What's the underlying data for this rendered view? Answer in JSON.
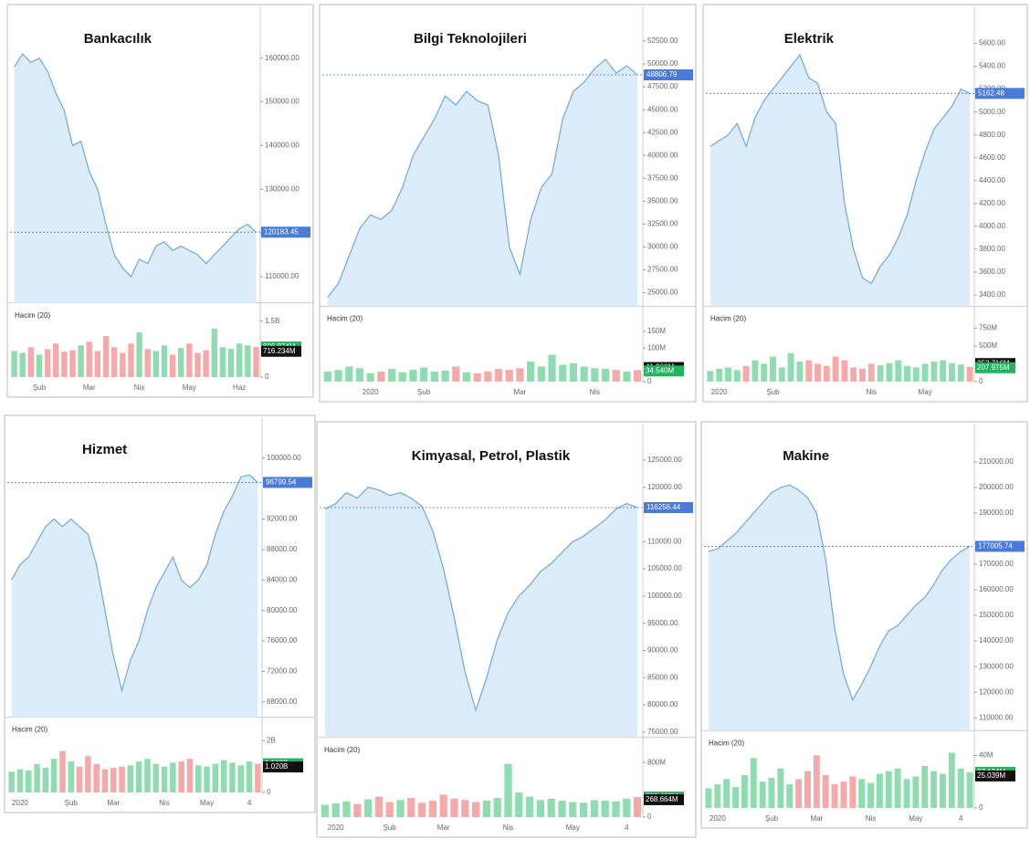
{
  "chart_data": [
    {
      "type": "area",
      "title": "Bankacılık",
      "color": "#6fa8dc",
      "fill": "#dcedf9",
      "categories": [
        null,
        null,
        null,
        "Şub",
        null,
        null,
        null,
        null,
        null,
        "Mar",
        null,
        null,
        null,
        null,
        null,
        "Nis",
        null,
        null,
        null,
        null,
        null,
        "May",
        null,
        null,
        null,
        null,
        null,
        "Haz",
        null,
        null
      ],
      "values": [
        158000,
        161000,
        159000,
        160000,
        157000,
        152000,
        148000,
        140000,
        141000,
        134000,
        130000,
        122000,
        115000,
        112000,
        110000,
        114000,
        113000,
        117000,
        118000,
        116000,
        117000,
        116000,
        115000,
        113000,
        115000,
        117000,
        119000,
        121000,
        122000,
        120183.45
      ],
      "last_label": "120183.45",
      "ylim": [
        104000,
        166000
      ],
      "yticks": [
        {
          "value": 110000,
          "label": "110000.00"
        },
        {
          "value": 120000,
          "label": "120000.00"
        },
        {
          "value": 130000,
          "label": "130000.00"
        },
        {
          "value": 140000,
          "label": "140000.00"
        },
        {
          "value": 150000,
          "label": "150000.00"
        },
        {
          "value": 160000,
          "label": "160000.00"
        }
      ],
      "volume": {
        "label": "Hacim (20)",
        "ylim": [
          0,
          1500
        ],
        "yticks": [
          0,
          {
            "value": 1500,
            "label": "1.5B"
          }
        ],
        "values": [
          700,
          650,
          800,
          600,
          750,
          900,
          680,
          720,
          850,
          950,
          700,
          1100,
          800,
          650,
          900,
          1200,
          750,
          700,
          850,
          600,
          780,
          900,
          650,
          720,
          1300,
          800,
          760,
          900,
          850,
          806.874
        ],
        "badges": [
          {
            "value": 806.874,
            "label": "806.874M",
            "color": "#22b35e"
          },
          {
            "value": 716.234,
            "label": "716.234M",
            "color": "#111111"
          }
        ]
      }
    },
    {
      "type": "area",
      "title": "Bilgi Teknolojileri",
      "color": "#6fa8dc",
      "fill": "#dcedf9",
      "categories": [
        null,
        null,
        null,
        null,
        "2020",
        null,
        null,
        null,
        null,
        "Şub",
        null,
        null,
        null,
        null,
        null,
        null,
        null,
        null,
        "Mar",
        null,
        null,
        null,
        null,
        null,
        null,
        "Nis",
        null,
        null,
        null,
        null
      ],
      "values": [
        24500,
        26000,
        29000,
        32000,
        33500,
        33000,
        34000,
        36500,
        40000,
        42000,
        44000,
        46500,
        45500,
        47000,
        46000,
        45500,
        40000,
        30000,
        27000,
        33000,
        36500,
        38000,
        44000,
        47000,
        48000,
        49500,
        50500,
        49000,
        49800,
        48806.79
      ],
      "last_label": "48806.79",
      "ylim": [
        23500,
        53500
      ],
      "yticks": [
        {
          "value": 25000,
          "label": "25000.00"
        },
        {
          "value": 27500,
          "label": "27500.00"
        },
        {
          "value": 30000,
          "label": "30000.00"
        },
        {
          "value": 32500,
          "label": "32500.00"
        },
        {
          "value": 35000,
          "label": "35000.00"
        },
        {
          "value": 37500,
          "label": "37500.00"
        },
        {
          "value": 40000,
          "label": "40000.00"
        },
        {
          "value": 42500,
          "label": "42500.00"
        },
        {
          "value": 45000,
          "label": "45000.00"
        },
        {
          "value": 47500,
          "label": "47500.00"
        },
        {
          "value": 50000,
          "label": "50000.00"
        },
        {
          "value": 52500,
          "label": "52500.00"
        }
      ],
      "volume": {
        "label": "Hacim (20)",
        "ylim": [
          0,
          170
        ],
        "yticks": [
          0,
          {
            "value": 100,
            "label": "100M"
          },
          {
            "value": 150,
            "label": "150M"
          }
        ],
        "values": [
          30,
          35,
          45,
          40,
          25,
          30,
          38,
          28,
          35,
          42,
          30,
          33,
          45,
          28,
          25,
          30,
          38,
          35,
          40,
          60,
          45,
          80,
          50,
          55,
          45,
          40,
          38,
          35,
          30,
          34.54
        ],
        "badges": [
          {
            "value": 41.96,
            "label": "41.960M",
            "color": "#111111"
          },
          {
            "value": 34.54,
            "label": "34.540M",
            "color": "#22b35e"
          }
        ]
      }
    },
    {
      "type": "area",
      "title": "Elektrik",
      "color": "#6fa8dc",
      "fill": "#dcedf9",
      "categories": [
        null,
        "2020",
        null,
        null,
        null,
        null,
        null,
        "Şub",
        null,
        null,
        null,
        null,
        null,
        null,
        null,
        null,
        null,
        null,
        "Nis",
        null,
        null,
        null,
        null,
        null,
        "May",
        null,
        null,
        null,
        null,
        null
      ],
      "values": [
        4700,
        4750,
        4800,
        4900,
        4700,
        4950,
        5100,
        5200,
        5300,
        5400,
        5500,
        5300,
        5250,
        5000,
        4900,
        4200,
        3800,
        3550,
        3500,
        3650,
        3750,
        3900,
        4100,
        4400,
        4650,
        4850,
        4950,
        5050,
        5200,
        5162.48
      ],
      "last_label": "5162.48",
      "ylim": [
        3300,
        5700
      ],
      "yticks": [
        {
          "value": 3400,
          "label": "3400.00"
        },
        {
          "value": 3600,
          "label": "3600.00"
        },
        {
          "value": 3800,
          "label": "3800.00"
        },
        {
          "value": 4000,
          "label": "4000.00"
        },
        {
          "value": 4200,
          "label": "4200.00"
        },
        {
          "value": 4400,
          "label": "4400.00"
        },
        {
          "value": 4600,
          "label": "4600.00"
        },
        {
          "value": 4800,
          "label": "4800.00"
        },
        {
          "value": 5000,
          "label": "5000.00"
        },
        {
          "value": 5200,
          "label": "5200.00"
        },
        {
          "value": 5400,
          "label": "5400.00"
        },
        {
          "value": 5600,
          "label": "5600.00"
        }
      ],
      "volume": {
        "label": "Hacim (20)",
        "ylim": [
          0,
          800
        ],
        "yticks": [
          0,
          {
            "value": 500,
            "label": "500M"
          },
          {
            "value": 750,
            "label": "750M"
          }
        ],
        "values": [
          150,
          180,
          200,
          160,
          220,
          300,
          250,
          350,
          200,
          400,
          280,
          300,
          250,
          220,
          350,
          300,
          200,
          180,
          250,
          230,
          260,
          300,
          220,
          200,
          250,
          280,
          300,
          260,
          240,
          207.975
        ],
        "badges": [
          {
            "value": 253.716,
            "label": "253.716M",
            "color": "#111111"
          },
          {
            "value": 207.975,
            "label": "207.975M",
            "color": "#22b35e"
          }
        ]
      }
    },
    {
      "type": "area",
      "title": "Hizmet",
      "color": "#6fa8dc",
      "fill": "#dcedf9",
      "categories": [
        null,
        "2020",
        null,
        null,
        null,
        null,
        null,
        "Şub",
        null,
        null,
        null,
        null,
        "Mar",
        null,
        null,
        null,
        null,
        null,
        "Nis",
        null,
        null,
        null,
        null,
        "May",
        null,
        null,
        null,
        null,
        "4",
        null
      ],
      "values": [
        84000,
        86000,
        87000,
        89000,
        91000,
        92000,
        91000,
        92000,
        91000,
        90000,
        86000,
        80000,
        74000,
        69500,
        73500,
        76000,
        80000,
        83000,
        85000,
        87000,
        84000,
        83000,
        84000,
        86000,
        90000,
        93000,
        95000,
        97500,
        97800,
        96799.54
      ],
      "last_label": "96799.54",
      "ylim": [
        66000,
        102000
      ],
      "yticks": [
        {
          "value": 68000,
          "label": "68000.00"
        },
        {
          "value": 72000,
          "label": "72000.00"
        },
        {
          "value": 76000,
          "label": "76000.00"
        },
        {
          "value": 80000,
          "label": "80000.00"
        },
        {
          "value": 84000,
          "label": "84000.00"
        },
        {
          "value": 88000,
          "label": "88000.00"
        },
        {
          "value": 92000,
          "label": "92000.00"
        },
        {
          "value": 100000,
          "label": "100000.00"
        }
      ],
      "volume": {
        "label": "Hacim (20)",
        "ylim": [
          0,
          2200
        ],
        "yticks": [
          0,
          {
            "value": 2000,
            "label": "2B"
          }
        ],
        "values": [
          800,
          900,
          850,
          1100,
          950,
          1300,
          1600,
          1200,
          1000,
          1400,
          1100,
          900,
          950,
          1000,
          1050,
          1200,
          1300,
          1100,
          1000,
          1150,
          1200,
          1300,
          1050,
          1000,
          1100,
          1250,
          1150,
          1050,
          1200,
          1108
        ],
        "badges": [
          {
            "value": 1108,
            "label": "1.108B",
            "color": "#22b35e"
          },
          {
            "value": 1020,
            "label": "1.020B",
            "color": "#111111"
          }
        ]
      }
    },
    {
      "type": "area",
      "title": "Kimyasal, Petrol, Plastik",
      "color": "#6fa8dc",
      "fill": "#dcedf9",
      "categories": [
        null,
        "2020",
        null,
        null,
        null,
        null,
        "Şub",
        null,
        null,
        null,
        null,
        "Mar",
        null,
        null,
        null,
        null,
        null,
        "Nis",
        null,
        null,
        null,
        null,
        null,
        "May",
        null,
        null,
        null,
        null,
        "4",
        null
      ],
      "values": [
        116000,
        117000,
        119000,
        118000,
        120000,
        119500,
        118500,
        119000,
        118000,
        116500,
        112000,
        105000,
        96000,
        86000,
        79000,
        85000,
        92000,
        97000,
        100000,
        102000,
        104500,
        106000,
        108000,
        110000,
        111000,
        112500,
        114000,
        116000,
        117000,
        116256.44
      ],
      "last_label": "116256.44",
      "ylim": [
        74000,
        127000
      ],
      "yticks": [
        {
          "value": 75000,
          "label": "75000.00"
        },
        {
          "value": 80000,
          "label": "80000.00"
        },
        {
          "value": 85000,
          "label": "85000.00"
        },
        {
          "value": 90000,
          "label": "90000.00"
        },
        {
          "value": 95000,
          "label": "95000.00"
        },
        {
          "value": 100000,
          "label": "100000.00"
        },
        {
          "value": 105000,
          "label": "105000.00"
        },
        {
          "value": 110000,
          "label": "110000.00"
        },
        {
          "value": 120000,
          "label": "120000.00"
        },
        {
          "value": 125000,
          "label": "125000.00"
        }
      ],
      "volume": {
        "label": "Hacim (20)",
        "ylim": [
          0,
          900
        ],
        "yticks": [
          0,
          {
            "value": 800,
            "label": "800M"
          }
        ],
        "values": [
          180,
          200,
          230,
          190,
          260,
          300,
          220,
          250,
          280,
          210,
          240,
          330,
          270,
          250,
          220,
          240,
          280,
          780,
          360,
          300,
          250,
          270,
          240,
          220,
          210,
          250,
          240,
          230,
          270,
          293.429
        ],
        "badges": [
          {
            "value": 293.429,
            "label": "293.429M",
            "color": "#22b35e"
          },
          {
            "value": 268.664,
            "label": "268.664M",
            "color": "#111111"
          }
        ]
      }
    },
    {
      "type": "area",
      "title": "Makine",
      "color": "#6fa8dc",
      "fill": "#dcedf9",
      "categories": [
        null,
        "2020",
        null,
        null,
        null,
        null,
        null,
        "Şub",
        null,
        null,
        null,
        null,
        "Mar",
        null,
        null,
        null,
        null,
        null,
        "Nis",
        null,
        null,
        null,
        null,
        "May",
        null,
        null,
        null,
        null,
        "4",
        null
      ],
      "values": [
        175000,
        176000,
        179000,
        182000,
        186000,
        190000,
        194000,
        198000,
        200000,
        201000,
        199000,
        196000,
        190000,
        172000,
        145000,
        127000,
        117000,
        123000,
        130000,
        138000,
        144000,
        146000,
        150000,
        154000,
        157000,
        162000,
        168000,
        172000,
        175000,
        177005.74
      ],
      "last_label": "177005.74",
      "ylim": [
        105000,
        215000
      ],
      "yticks": [
        {
          "value": 110000,
          "label": "110000.00"
        },
        {
          "value": 120000,
          "label": "120000.00"
        },
        {
          "value": 130000,
          "label": "130000.00"
        },
        {
          "value": 140000,
          "label": "140000.00"
        },
        {
          "value": 150000,
          "label": "150000.00"
        },
        {
          "value": 160000,
          "label": "160000.00"
        },
        {
          "value": 170000,
          "label": "170000.00"
        },
        {
          "value": 190000,
          "label": "190000.00"
        },
        {
          "value": 200000,
          "label": "200000.00"
        },
        {
          "value": 210000,
          "label": "210000.00"
        }
      ],
      "volume": {
        "label": "Hacim (20)",
        "ylim": [
          0,
          45
        ],
        "yticks": [
          0,
          {
            "value": 40,
            "label": "40M"
          }
        ],
        "values": [
          15,
          18,
          22,
          16,
          25,
          38,
          20,
          23,
          30,
          18,
          22,
          28,
          40,
          25,
          18,
          20,
          24,
          22,
          19,
          26,
          28,
          30,
          22,
          24,
          32,
          28,
          26,
          42,
          30,
          27.134
        ],
        "badges": [
          {
            "value": 27.134,
            "label": "27.134M",
            "color": "#22b35e"
          },
          {
            "value": 25.039,
            "label": "25.039M",
            "color": "#111111"
          }
        ]
      }
    }
  ]
}
